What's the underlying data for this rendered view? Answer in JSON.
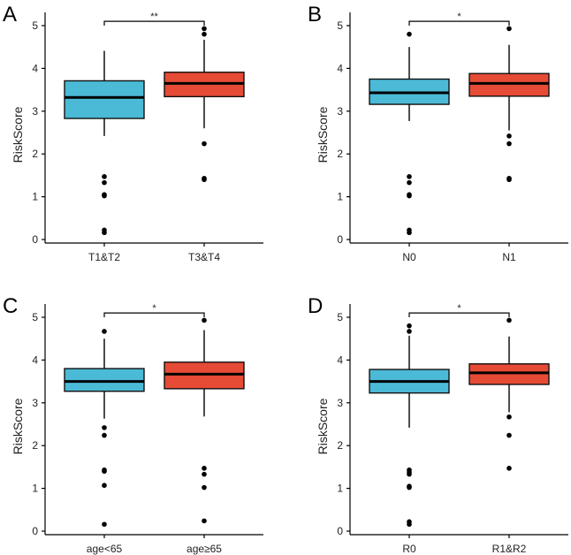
{
  "colors": {
    "group1": "#4bbad6",
    "group2": "#e64b35"
  },
  "chart_data": [
    {
      "type": "boxplot",
      "panel": "A",
      "ylabel": "RiskScore",
      "ylim": [
        0,
        5
      ],
      "yticks": [
        "0",
        "1",
        "2",
        "3",
        "4",
        "5"
      ],
      "significance": "**",
      "groups": [
        {
          "name": "T1&T2",
          "q1": 2.83,
          "median": 3.32,
          "q3": 3.71,
          "whisker_low": 2.42,
          "whisker_high": 4.41,
          "outliers": [
            1.47,
            1.33,
            1.05,
            1.02,
            0.22,
            0.16
          ]
        },
        {
          "name": "T3&T4",
          "q1": 3.34,
          "median": 3.65,
          "q3": 3.91,
          "whisker_low": 2.6,
          "whisker_high": 4.67,
          "outliers": [
            4.93,
            4.8,
            2.24,
            1.43,
            1.4
          ]
        }
      ]
    },
    {
      "type": "boxplot",
      "panel": "B",
      "ylabel": "RiskScore",
      "ylim": [
        0,
        5
      ],
      "yticks": [
        "0",
        "1",
        "2",
        "3",
        "4",
        "5"
      ],
      "significance": "*",
      "groups": [
        {
          "name": "N0",
          "q1": 3.16,
          "median": 3.43,
          "q3": 3.75,
          "whisker_low": 2.77,
          "whisker_high": 4.5,
          "outliers": [
            4.8,
            1.47,
            1.33,
            1.05,
            1.02,
            0.22,
            0.16
          ]
        },
        {
          "name": "N1",
          "q1": 3.35,
          "median": 3.65,
          "q3": 3.88,
          "whisker_low": 2.55,
          "whisker_high": 4.55,
          "outliers": [
            4.93,
            2.42,
            2.24,
            1.43,
            1.4
          ]
        }
      ]
    },
    {
      "type": "boxplot",
      "panel": "C",
      "ylabel": "RiskScore",
      "ylim": [
        0,
        5
      ],
      "yticks": [
        "0",
        "1",
        "2",
        "3",
        "4",
        "5"
      ],
      "significance": "*",
      "groups": [
        {
          "name": "age<65",
          "q1": 3.27,
          "median": 3.5,
          "q3": 3.8,
          "whisker_low": 2.63,
          "whisker_high": 4.5,
          "outliers": [
            4.67,
            2.42,
            2.24,
            1.43,
            1.4,
            1.07,
            0.16
          ]
        },
        {
          "name": "age≥65",
          "q1": 3.33,
          "median": 3.67,
          "q3": 3.95,
          "whisker_low": 2.68,
          "whisker_high": 4.7,
          "outliers": [
            4.93,
            1.47,
            1.33,
            1.02,
            0.24
          ]
        }
      ]
    },
    {
      "type": "boxplot",
      "panel": "D",
      "ylabel": "RiskScore",
      "ylim": [
        0,
        5
      ],
      "yticks": [
        "0",
        "1",
        "2",
        "3",
        "4",
        "5"
      ],
      "significance": "*",
      "groups": [
        {
          "name": "R0",
          "q1": 3.23,
          "median": 3.5,
          "q3": 3.78,
          "whisker_low": 2.42,
          "whisker_high": 4.57,
          "outliers": [
            4.8,
            4.67,
            1.43,
            1.38,
            1.33,
            1.05,
            1.02,
            0.22,
            0.16
          ]
        },
        {
          "name": "R1&R2",
          "q1": 3.43,
          "median": 3.7,
          "q3": 3.91,
          "whisker_low": 2.78,
          "whisker_high": 4.55,
          "outliers": [
            4.93,
            2.67,
            2.24,
            1.47
          ]
        }
      ]
    }
  ]
}
